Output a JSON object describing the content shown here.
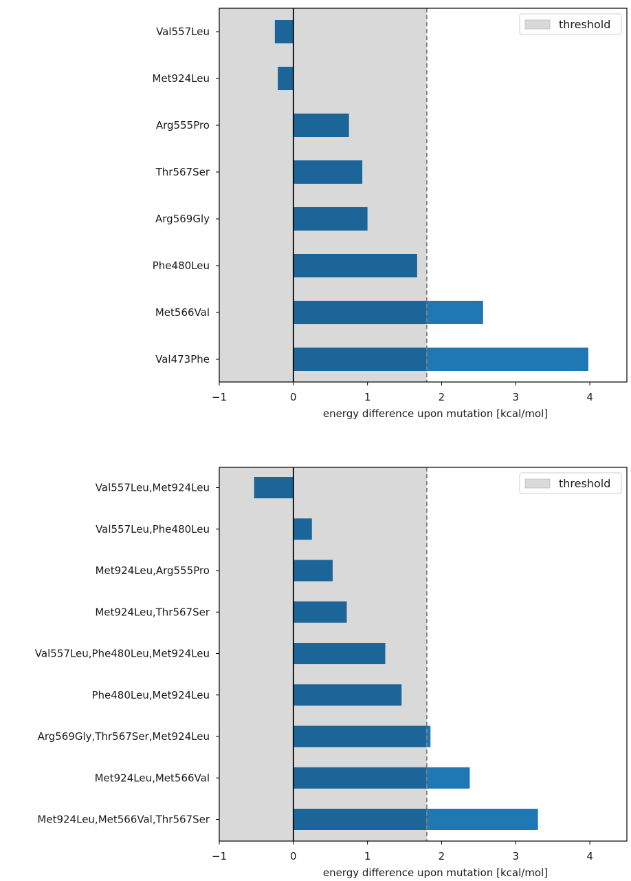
{
  "chart_data": [
    {
      "type": "bar",
      "orientation": "horizontal",
      "categories": [
        "Val557Leu",
        "Met924Leu",
        "Arg555Pro",
        "Thr567Ser",
        "Arg569Gly",
        "Phe480Leu",
        "Met566Val",
        "Val473Phe"
      ],
      "values": [
        -0.25,
        -0.21,
        0.75,
        0.93,
        1.0,
        1.67,
        2.56,
        3.98
      ],
      "xlabel": "energy difference upon mutation [kcal/mol]",
      "ylabel": "",
      "xlim": [
        -1,
        4.5
      ],
      "xticks": [
        -1,
        0,
        1,
        2,
        3,
        4
      ],
      "xtick_labels": [
        "−1",
        "0",
        "1",
        "2",
        "3",
        "4"
      ],
      "threshold": 1.8,
      "threshold_region": [
        -1,
        1.8
      ],
      "legend": {
        "entries": [
          "threshold"
        ],
        "position": "top-right"
      },
      "grid": false
    },
    {
      "type": "bar",
      "orientation": "horizontal",
      "categories": [
        "Val557Leu,Met924Leu",
        "Val557Leu,Phe480Leu",
        "Met924Leu,Arg555Pro",
        "Met924Leu,Thr567Ser",
        "Val557Leu,Phe480Leu,Met924Leu",
        "Phe480Leu,Met924Leu",
        "Arg569Gly,Thr567Ser,Met924Leu",
        "Met924Leu,Met566Val",
        "Met924Leu,Met566Val,Thr567Ser"
      ],
      "values": [
        -0.53,
        0.25,
        0.53,
        0.72,
        1.24,
        1.46,
        1.85,
        2.38,
        3.3
      ],
      "xlabel": "energy difference upon mutation [kcal/mol]",
      "ylabel": "",
      "xlim": [
        -1,
        4.5
      ],
      "xticks": [
        -1,
        0,
        1,
        2,
        3,
        4
      ],
      "xtick_labels": [
        "−1",
        "0",
        "1",
        "2",
        "3",
        "4"
      ],
      "threshold": 1.8,
      "threshold_region": [
        -1,
        1.8
      ],
      "legend": {
        "entries": [
          "threshold"
        ],
        "position": "top-right"
      },
      "grid": false
    }
  ],
  "colors": {
    "bar": "#1f77b4",
    "bar_in_threshold": "#1c6599",
    "threshold_fill": "#d9d9d9",
    "threshold_line": "#808080",
    "zero_line": "#000000"
  }
}
